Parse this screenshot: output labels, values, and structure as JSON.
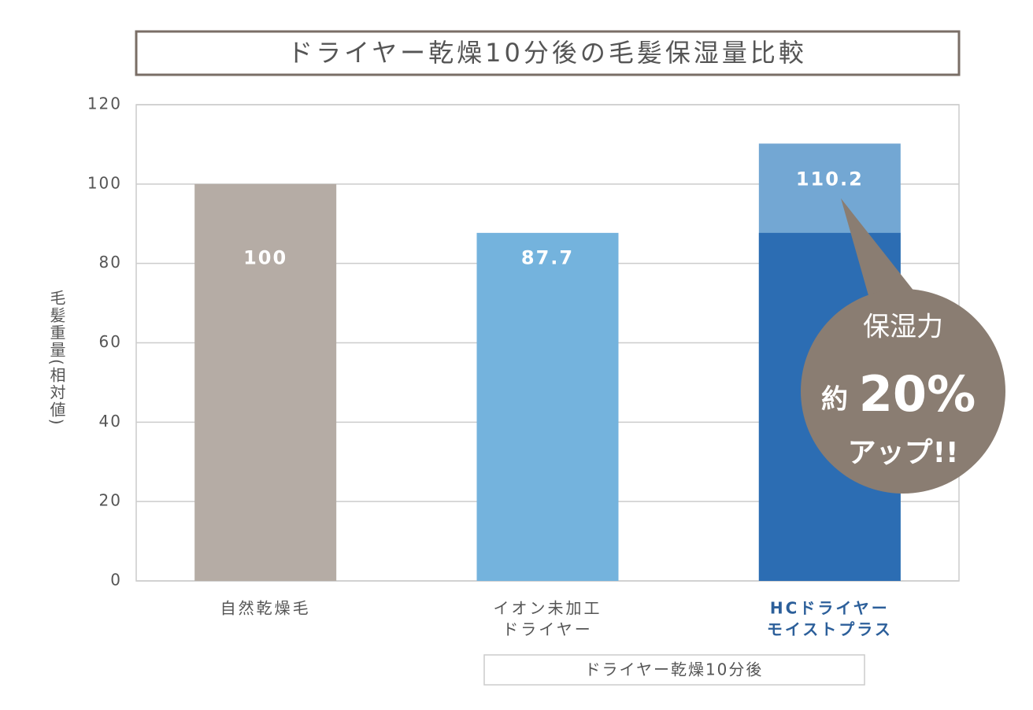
{
  "chart_data": {
    "type": "bar",
    "title": "ドライヤー乾燥10分後の毛髪保湿量比較",
    "y_label": "毛髪重量(相対値)",
    "categories": [
      [
        "自然乾燥毛"
      ],
      [
        "イオン未加工",
        "ドライヤー"
      ],
      [
        "HCドライヤー",
        "モイストプラス"
      ]
    ],
    "values": [
      100,
      87.7,
      110.2
    ],
    "colors": [
      "#b5aca5",
      "#74b3dd",
      "#73a7d3"
    ],
    "baseline_color": "#2c6db3",
    "highlight_label_color": "#2c5f9a",
    "ylim": [
      0,
      120
    ],
    "yticks": [
      0,
      20,
      40,
      60,
      80,
      100,
      120
    ],
    "grid": true,
    "group_label": "ドライヤー乾燥10分後",
    "callout": {
      "line1": "保湿力",
      "prefix": "約",
      "value_text": "20%",
      "suffix": "アップ!!"
    }
  }
}
